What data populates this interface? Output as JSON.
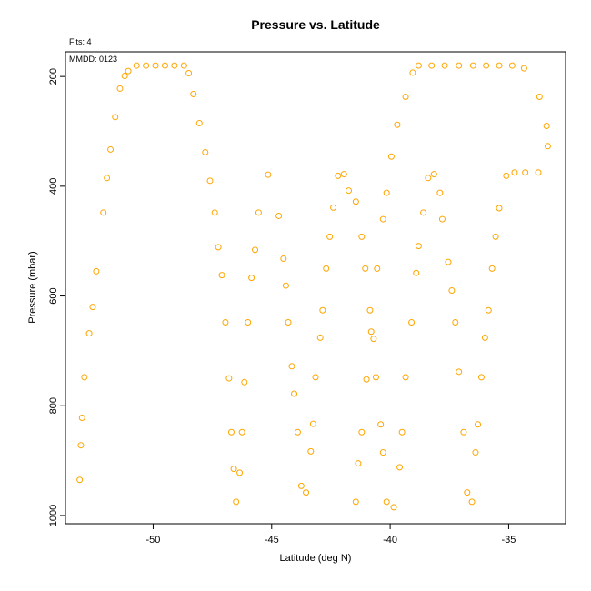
{
  "chart_data": {
    "type": "scatter",
    "title": "Pressure vs. Latitude",
    "annotations": {
      "flights": "Flts: 4",
      "date": "MMDD: 0123"
    },
    "xlabel": "Latitude (deg N)",
    "ylabel": "Pressure (mbar)",
    "xlim": [
      -53.7,
      -32.6
    ],
    "ylim": [
      1015,
      155
    ],
    "y_reversed": true,
    "x_ticks": [
      -50,
      -45,
      -40,
      -35
    ],
    "y_ticks": [
      200,
      400,
      600,
      800,
      1000
    ],
    "marker": "open-circle",
    "color": "#ffa500",
    "grid": false,
    "points": [
      [
        -53.1,
        935
      ],
      [
        -53.05,
        872
      ],
      [
        -53.0,
        822
      ],
      [
        -52.9,
        748
      ],
      [
        -52.7,
        668
      ],
      [
        -52.55,
        620
      ],
      [
        -52.4,
        555
      ],
      [
        -52.1,
        448
      ],
      [
        -51.95,
        385
      ],
      [
        -51.8,
        333
      ],
      [
        -51.6,
        274
      ],
      [
        -51.4,
        222
      ],
      [
        -51.2,
        199
      ],
      [
        -51.05,
        190
      ],
      [
        -50.7,
        180
      ],
      [
        -50.3,
        180
      ],
      [
        -49.9,
        180
      ],
      [
        -49.5,
        180
      ],
      [
        -49.1,
        180
      ],
      [
        -48.7,
        180
      ],
      [
        -48.5,
        194
      ],
      [
        -48.3,
        232
      ],
      [
        -48.05,
        285
      ],
      [
        -47.8,
        338
      ],
      [
        -47.6,
        390
      ],
      [
        -47.4,
        448
      ],
      [
        -47.25,
        511
      ],
      [
        -47.1,
        562
      ],
      [
        -46.95,
        648
      ],
      [
        -46.8,
        750
      ],
      [
        -46.7,
        848
      ],
      [
        -46.6,
        915
      ],
      [
        -46.5,
        975
      ],
      [
        -46.35,
        922
      ],
      [
        -46.25,
        848
      ],
      [
        -46.15,
        757
      ],
      [
        -46.0,
        648
      ],
      [
        -45.85,
        567
      ],
      [
        -45.7,
        516
      ],
      [
        -45.55,
        448
      ],
      [
        -45.15,
        379
      ],
      [
        -44.7,
        454
      ],
      [
        -44.5,
        532
      ],
      [
        -44.4,
        581
      ],
      [
        -44.3,
        648
      ],
      [
        -44.15,
        728
      ],
      [
        -44.05,
        778
      ],
      [
        -43.9,
        848
      ],
      [
        -43.75,
        946
      ],
      [
        -43.55,
        958
      ],
      [
        -43.35,
        883
      ],
      [
        -43.25,
        833
      ],
      [
        -43.15,
        748
      ],
      [
        -42.95,
        676
      ],
      [
        -42.85,
        626
      ],
      [
        -42.7,
        550
      ],
      [
        -42.55,
        492
      ],
      [
        -42.4,
        439
      ],
      [
        -42.2,
        381
      ],
      [
        -41.95,
        378
      ],
      [
        -41.75,
        408
      ],
      [
        -41.45,
        428
      ],
      [
        -41.45,
        975
      ],
      [
        -41.35,
        905
      ],
      [
        -41.2,
        848
      ],
      [
        -41.2,
        492
      ],
      [
        -41.05,
        550
      ],
      [
        -41.0,
        752
      ],
      [
        -40.85,
        626
      ],
      [
        -40.8,
        665
      ],
      [
        -40.7,
        678
      ],
      [
        -40.6,
        748
      ],
      [
        -40.55,
        550
      ],
      [
        -40.4,
        834
      ],
      [
        -40.3,
        885
      ],
      [
        -40.3,
        460
      ],
      [
        -40.15,
        412
      ],
      [
        -40.15,
        975
      ],
      [
        -39.95,
        346
      ],
      [
        -39.85,
        985
      ],
      [
        -39.7,
        288
      ],
      [
        -39.6,
        912
      ],
      [
        -39.5,
        848
      ],
      [
        -39.35,
        748
      ],
      [
        -39.35,
        237
      ],
      [
        -39.1,
        648
      ],
      [
        -39.05,
        193
      ],
      [
        -38.9,
        558
      ],
      [
        -38.8,
        509
      ],
      [
        -38.8,
        180
      ],
      [
        -38.6,
        448
      ],
      [
        -38.4,
        385
      ],
      [
        -38.25,
        180
      ],
      [
        -38.15,
        378
      ],
      [
        -37.9,
        412
      ],
      [
        -37.8,
        460
      ],
      [
        -37.7,
        180
      ],
      [
        -37.55,
        538
      ],
      [
        -37.4,
        590
      ],
      [
        -37.25,
        648
      ],
      [
        -37.1,
        180
      ],
      [
        -37.1,
        738
      ],
      [
        -36.9,
        848
      ],
      [
        -36.75,
        958
      ],
      [
        -36.55,
        975
      ],
      [
        -36.5,
        180
      ],
      [
        -36.4,
        885
      ],
      [
        -36.3,
        834
      ],
      [
        -36.15,
        748
      ],
      [
        -36.0,
        676
      ],
      [
        -35.95,
        180
      ],
      [
        -35.85,
        626
      ],
      [
        -35.7,
        550
      ],
      [
        -35.55,
        492
      ],
      [
        -35.4,
        180
      ],
      [
        -35.4,
        440
      ],
      [
        -35.1,
        381
      ],
      [
        -34.85,
        180
      ],
      [
        -34.75,
        375
      ],
      [
        -34.35,
        185
      ],
      [
        -34.3,
        375
      ],
      [
        -33.75,
        375
      ],
      [
        -33.7,
        237
      ],
      [
        -33.4,
        290
      ],
      [
        -33.35,
        327
      ]
    ]
  }
}
